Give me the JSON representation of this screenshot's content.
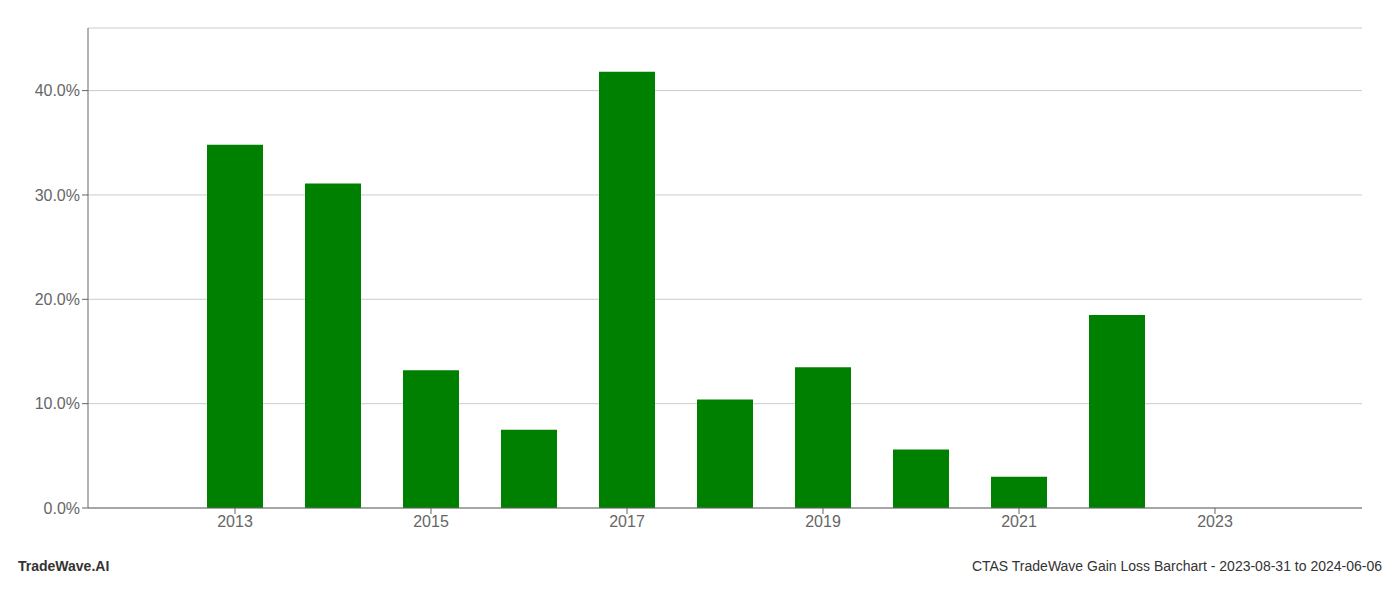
{
  "chart_data": {
    "type": "bar",
    "x": [
      2013,
      2014,
      2015,
      2016,
      2017,
      2018,
      2019,
      2020,
      2021,
      2022,
      2023
    ],
    "values": [
      0.348,
      0.311,
      0.132,
      0.075,
      0.418,
      0.104,
      0.135,
      0.056,
      0.03,
      0.185,
      0.0
    ],
    "color": "#008000",
    "xlim": [
      2011.5,
      2024.5
    ],
    "xticks": [
      2013,
      2015,
      2017,
      2019,
      2021,
      2023
    ],
    "ylim": [
      0,
      0.46
    ],
    "yticks": [
      {
        "value": 0.0,
        "label": "0.0%"
      },
      {
        "value": 0.1,
        "label": "10.0%"
      },
      {
        "value": 0.2,
        "label": "20.0%"
      },
      {
        "value": 0.3,
        "label": "30.0%"
      },
      {
        "value": 0.4,
        "label": "40.0%"
      }
    ],
    "grid": true,
    "annotations": [
      "TradeWave.AI",
      "CTAS TradeWave Gain Loss Barchart - 2023-08-31 to 2024-06-06"
    ]
  }
}
